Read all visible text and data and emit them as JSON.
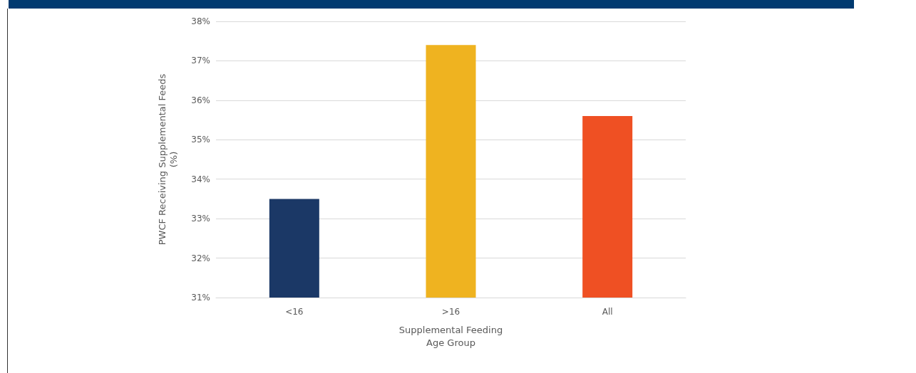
{
  "chart_data": {
    "type": "bar",
    "xlabel": "Supplemental Feeding\nAge Group",
    "ylabel": "PWCF Receiving Supplemental Feeds\n(%)",
    "categories": [
      "<16",
      ">16",
      "All"
    ],
    "values": [
      33.5,
      37.4,
      35.6
    ],
    "colors": [
      "#1b3866",
      "#efb320",
      "#ef5023"
    ],
    "ylim": [
      31,
      38
    ],
    "yticks": [
      {
        "value": 31,
        "label": "31%"
      },
      {
        "value": 32,
        "label": "32%"
      },
      {
        "value": 33,
        "label": "33%"
      },
      {
        "value": 34,
        "label": "34%"
      },
      {
        "value": 35,
        "label": "35%"
      },
      {
        "value": 36,
        "label": "36%"
      },
      {
        "value": 37,
        "label": "37%"
      },
      {
        "value": 38,
        "label": "38%"
      }
    ],
    "grid": "y"
  }
}
